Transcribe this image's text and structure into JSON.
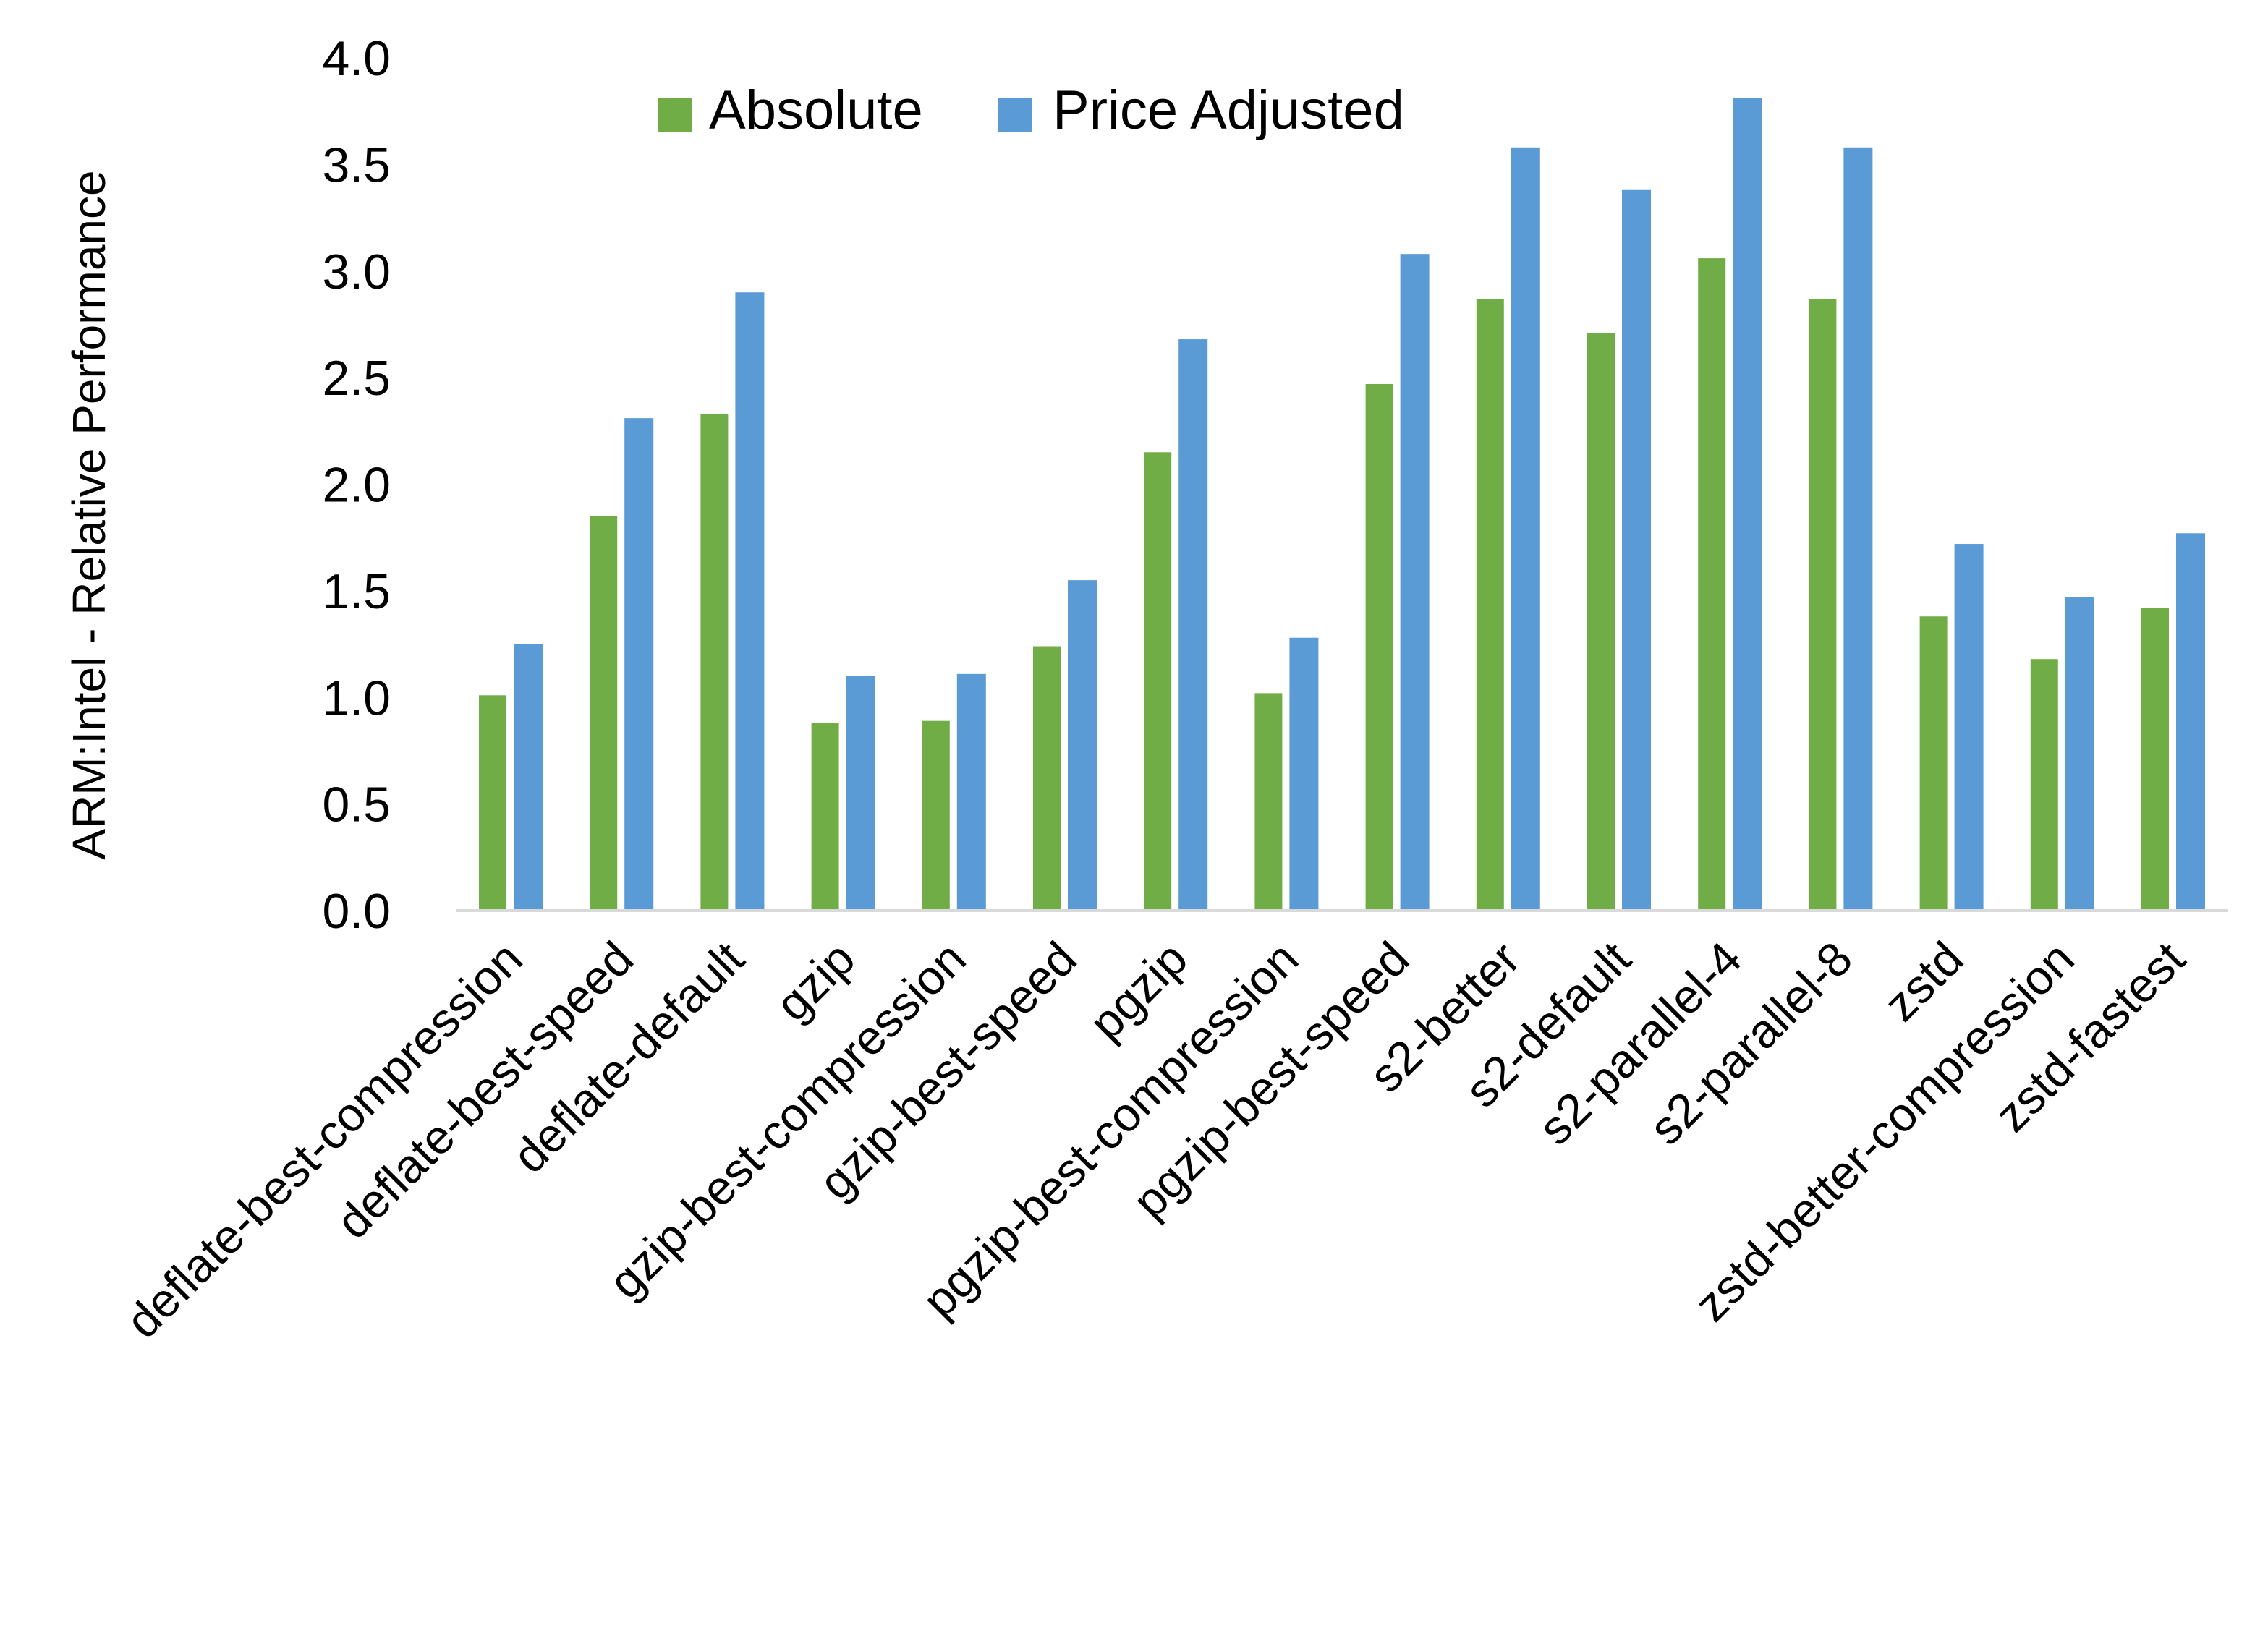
{
  "chart_data": {
    "type": "bar",
    "title": "",
    "xlabel": "",
    "ylabel": "ARM:Intel - Relative Performance",
    "ylim": [
      0,
      4.0
    ],
    "yticks": [
      "0.0",
      "0.5",
      "1.0",
      "1.5",
      "2.0",
      "2.5",
      "3.0",
      "3.5",
      "4.0"
    ],
    "grid": false,
    "legend_position": "top",
    "categories": [
      "deflate-best-compression",
      "deflate-best-speed",
      "deflate-default",
      "gzip",
      "gzip-best-compression",
      "gzip-best-speed",
      "pgzip",
      "pgzip-best-compression",
      "pgzip-best-speed",
      "s2-better",
      "s2-default",
      "s2-parallel-4",
      "s2-parallel-8",
      "zstd",
      "zstd-better-compression",
      "zstd-fastest"
    ],
    "series": [
      {
        "name": "Absolute",
        "color": "#70AD47",
        "values": [
          1.01,
          1.85,
          2.33,
          0.88,
          0.89,
          1.24,
          2.15,
          1.02,
          2.47,
          2.87,
          2.71,
          3.06,
          2.87,
          1.38,
          1.18,
          1.42
        ]
      },
      {
        "name": "Price Adjusted",
        "color": "#5B9BD5",
        "values": [
          1.25,
          2.31,
          2.9,
          1.1,
          1.11,
          1.55,
          2.68,
          1.28,
          3.08,
          3.58,
          3.38,
          3.81,
          3.58,
          1.72,
          1.47,
          1.77
        ]
      }
    ]
  }
}
